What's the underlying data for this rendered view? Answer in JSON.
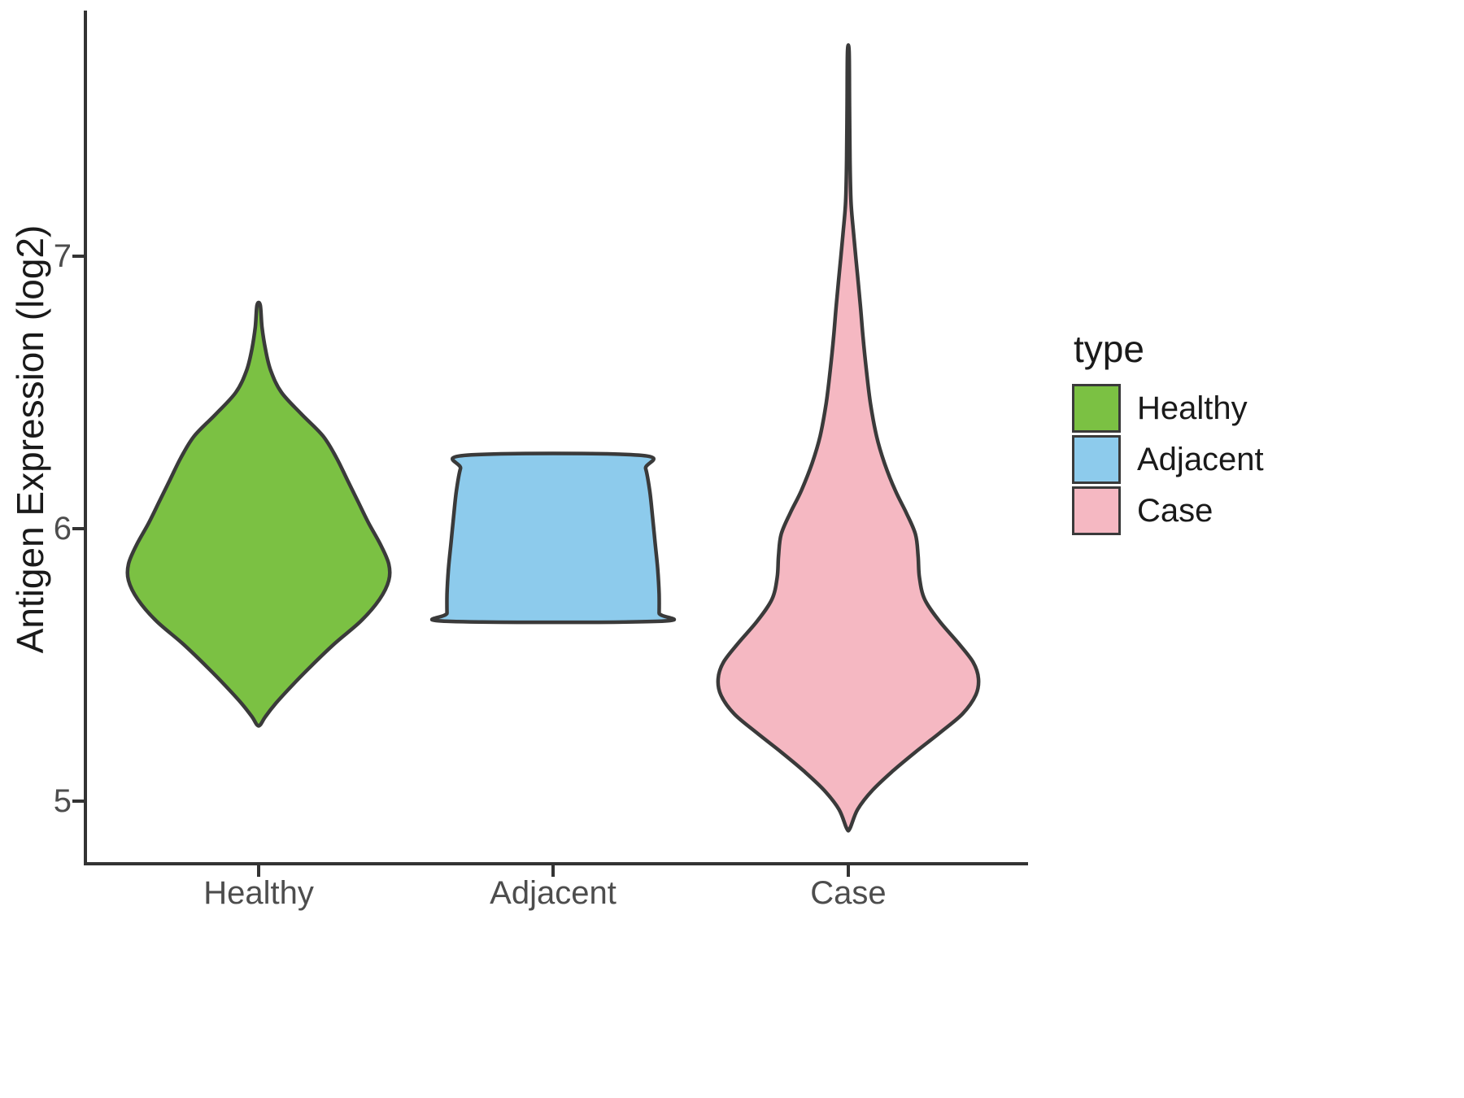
{
  "chart_data": {
    "type": "violin",
    "title": "",
    "xlabel": "",
    "ylabel": "Antigen Expression (log2)",
    "categories": [
      "Healthy",
      "Adjacent",
      "Case"
    ],
    "y_tick_values": [
      5,
      6,
      7
    ],
    "ylim": [
      4.77,
      7.9
    ],
    "grid": false,
    "legend_position": "right",
    "background": "#ffffff",
    "stroke_color": "#3a3a3a",
    "axis_color": "#333333",
    "legend": {
      "title": "type",
      "entries": [
        {
          "label": "Healthy",
          "color": "#7bc143"
        },
        {
          "label": "Adjacent",
          "color": "#8dcbec"
        },
        {
          "label": "Case",
          "color": "#f5b8c2"
        }
      ]
    },
    "series": [
      {
        "name": "Healthy",
        "color": "#7bc143",
        "value_range": [
          5.28,
          6.82
        ],
        "peak_value": 5.86,
        "profile": [
          [
            6.82,
            0.012
          ],
          [
            6.74,
            0.025
          ],
          [
            6.66,
            0.05
          ],
          [
            6.58,
            0.09
          ],
          [
            6.5,
            0.17
          ],
          [
            6.42,
            0.32
          ],
          [
            6.34,
            0.48
          ],
          [
            6.26,
            0.58
          ],
          [
            6.18,
            0.66
          ],
          [
            6.1,
            0.74
          ],
          [
            6.02,
            0.82
          ],
          [
            5.94,
            0.91
          ],
          [
            5.87,
            0.97
          ],
          [
            5.81,
            0.97
          ],
          [
            5.74,
            0.9
          ],
          [
            5.66,
            0.76
          ],
          [
            5.58,
            0.57
          ],
          [
            5.5,
            0.4
          ],
          [
            5.43,
            0.26
          ],
          [
            5.36,
            0.13
          ],
          [
            5.31,
            0.05
          ],
          [
            5.28,
            0.012
          ]
        ]
      },
      {
        "name": "Adjacent",
        "color": "#8dcbec",
        "value_range": [
          5.66,
          6.27
        ],
        "peak_value": 5.76,
        "truncated": true,
        "profile": [
          [
            6.27,
            0.64
          ],
          [
            6.22,
            0.69
          ],
          [
            6.14,
            0.72
          ],
          [
            6.05,
            0.74
          ],
          [
            5.95,
            0.76
          ],
          [
            5.85,
            0.78
          ],
          [
            5.76,
            0.79
          ],
          [
            5.69,
            0.79
          ],
          [
            5.66,
            0.785
          ]
        ]
      },
      {
        "name": "Case",
        "color": "#f5b8c2",
        "value_range": [
          4.9,
          7.75
        ],
        "peak_value": 5.45,
        "profile": [
          [
            7.75,
            0.006
          ],
          [
            7.55,
            0.009
          ],
          [
            7.35,
            0.013
          ],
          [
            7.2,
            0.02
          ],
          [
            7.08,
            0.04
          ],
          [
            6.95,
            0.065
          ],
          [
            6.82,
            0.09
          ],
          [
            6.7,
            0.11
          ],
          [
            6.58,
            0.135
          ],
          [
            6.46,
            0.165
          ],
          [
            6.34,
            0.21
          ],
          [
            6.24,
            0.27
          ],
          [
            6.14,
            0.35
          ],
          [
            6.06,
            0.43
          ],
          [
            5.98,
            0.5
          ],
          [
            5.9,
            0.52
          ],
          [
            5.82,
            0.53
          ],
          [
            5.74,
            0.57
          ],
          [
            5.66,
            0.68
          ],
          [
            5.58,
            0.82
          ],
          [
            5.51,
            0.93
          ],
          [
            5.45,
            0.97
          ],
          [
            5.39,
            0.95
          ],
          [
            5.32,
            0.85
          ],
          [
            5.25,
            0.68
          ],
          [
            5.18,
            0.5
          ],
          [
            5.11,
            0.33
          ],
          [
            5.04,
            0.18
          ],
          [
            4.97,
            0.07
          ],
          [
            4.9,
            0.012
          ]
        ]
      }
    ]
  }
}
